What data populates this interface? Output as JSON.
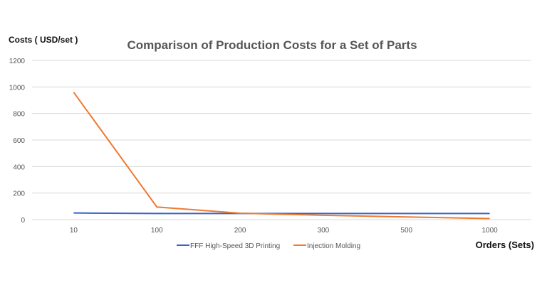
{
  "chart_data": {
    "type": "line",
    "title": "Comparison of Production Costs for a Set of Parts",
    "ylabel": "Costs ( USD/set )",
    "xlabel": "Orders (Sets)",
    "categories": [
      "10",
      "100",
      "200",
      "300",
      "500",
      "1000"
    ],
    "ylim": [
      0,
      1200
    ],
    "yticks": [
      "0",
      "200",
      "400",
      "600",
      "800",
      "1000",
      "1200"
    ],
    "grid": true,
    "legend_position": "bottom",
    "series": [
      {
        "name": "FFF High-Speed 3D Printing",
        "color": "#3a62c9",
        "values": [
          50,
          46,
          46,
          46,
          46,
          46
        ]
      },
      {
        "name": "Injection Molding",
        "color": "#ef7a30",
        "values": [
          960,
          95,
          48,
          33,
          20,
          8
        ]
      }
    ]
  }
}
